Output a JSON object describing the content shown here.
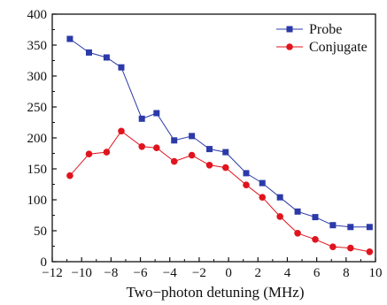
{
  "chart_data": {
    "type": "line",
    "title": "",
    "xlabel": "Two−photon detuning (MHz)",
    "ylabel": "",
    "xlim": [
      -12,
      10
    ],
    "ylim": [
      0,
      400
    ],
    "x_ticks": [
      -12,
      -10,
      -8,
      -6,
      -4,
      -2,
      0,
      2,
      4,
      6,
      8,
      10
    ],
    "x_tick_labels": [
      "−12",
      "−10",
      "−8",
      "−6",
      "−4",
      "−2",
      "0",
      "2",
      "4",
      "6",
      "8",
      "10"
    ],
    "y_ticks": [
      0,
      50,
      100,
      150,
      200,
      250,
      300,
      350,
      400
    ],
    "y_tick_labels": [
      "0",
      "50",
      "100",
      "150",
      "200",
      "250",
      "300",
      "350",
      "400"
    ],
    "grid": false,
    "legend_position": "top-right",
    "series": [
      {
        "name": "Probe",
        "color": "#2b3aa8",
        "marker": "square",
        "points": [
          [
            -10.8,
            360
          ],
          [
            -9.5,
            338
          ],
          [
            -8.3,
            330
          ],
          [
            -7.3,
            314
          ],
          [
            -5.9,
            231
          ],
          [
            -4.9,
            240
          ],
          [
            -3.7,
            196
          ],
          [
            -2.5,
            203
          ],
          [
            -1.3,
            182
          ],
          [
            -0.2,
            177
          ],
          [
            1.2,
            143
          ],
          [
            2.3,
            127
          ],
          [
            3.5,
            104
          ],
          [
            4.7,
            81
          ],
          [
            5.9,
            72
          ],
          [
            7.1,
            59
          ],
          [
            8.3,
            56
          ],
          [
            9.6,
            56
          ]
        ]
      },
      {
        "name": "Conjugate",
        "color": "#e0141e",
        "marker": "circle",
        "points": [
          [
            -10.8,
            139
          ],
          [
            -9.5,
            174
          ],
          [
            -8.3,
            177
          ],
          [
            -7.3,
            211
          ],
          [
            -5.9,
            186
          ],
          [
            -4.9,
            184
          ],
          [
            -3.7,
            162
          ],
          [
            -2.5,
            172
          ],
          [
            -1.3,
            156
          ],
          [
            -0.2,
            152
          ],
          [
            1.2,
            124
          ],
          [
            2.3,
            104
          ],
          [
            3.5,
            73
          ],
          [
            4.7,
            46
          ],
          [
            5.9,
            36
          ],
          [
            7.1,
            24
          ],
          [
            8.3,
            22
          ],
          [
            9.6,
            16
          ]
        ]
      }
    ]
  }
}
